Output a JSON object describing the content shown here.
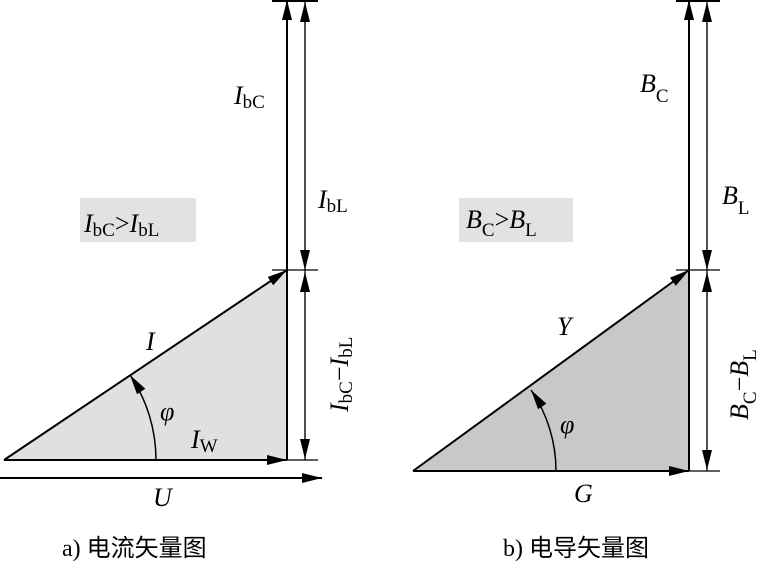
{
  "panel_a": {
    "caption": "a) 电流矢量图",
    "condition": {
      "main1": "I",
      "sub1": "bC",
      "op": ">",
      "main2": "I",
      "sub2": "bL"
    },
    "labels": {
      "ibc": {
        "main": "I",
        "sub": "bC"
      },
      "ibl": {
        "main": "I",
        "sub": "bL"
      },
      "diff": {
        "main1": "I",
        "sub1": "bC",
        "op": "−",
        "main2": "I",
        "sub2": "bL"
      },
      "hyp": "I",
      "angle": "φ",
      "active": {
        "main": "I",
        "sub": "W"
      },
      "voltage": "U"
    },
    "fill_color": "#e0e0e0"
  },
  "panel_b": {
    "caption": "b) 电导矢量图",
    "condition": {
      "main1": "B",
      "sub1": "C",
      "op": ">",
      "main2": "B",
      "sub2": "L"
    },
    "labels": {
      "bc": {
        "main": "B",
        "sub": "C"
      },
      "bl": {
        "main": "B",
        "sub": "L"
      },
      "diff": {
        "main1": "B",
        "sub1": "C",
        "op": "−",
        "main2": "B",
        "sub2": "L"
      },
      "hyp": "Y",
      "angle": "φ",
      "base": "G"
    },
    "fill_color": "#c8c8c8"
  }
}
